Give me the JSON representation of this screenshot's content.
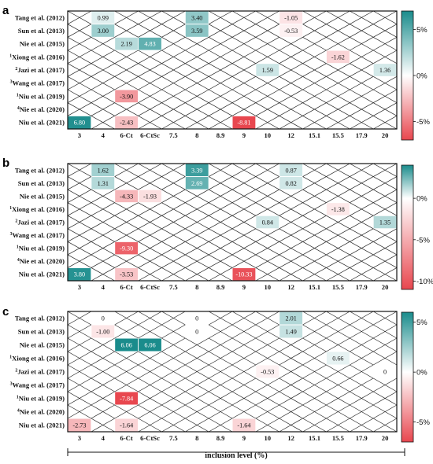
{
  "chart_data": [
    {
      "panel": "a",
      "type": "heatmap",
      "rows": [
        "Tang et al. (2012)",
        "Sun et al. (2013)",
        "Nie et al. (2015)",
        "Xiong et al. (2016)",
        "Jazi et al. (2017)",
        "Wang et al. (2017)",
        "Niu et al. (2019)",
        "Nie et al. (2020)",
        "Niu et al. (2021)"
      ],
      "row_superscripts": [
        "",
        "",
        "",
        "1",
        "2",
        "3",
        "1",
        "4",
        ""
      ],
      "columns": [
        "3",
        "4",
        "6-Ct",
        "6-CtSc",
        "7.5",
        "8",
        "8.9",
        "9",
        "10",
        "12",
        "15.1",
        "15.5",
        "17.9",
        "20"
      ],
      "cells": [
        {
          "row": 0,
          "col": 1,
          "value": 0.99
        },
        {
          "row": 0,
          "col": 5,
          "value": 3.4
        },
        {
          "row": 0,
          "col": 9,
          "value": -1.05
        },
        {
          "row": 1,
          "col": 1,
          "value": 3.0
        },
        {
          "row": 1,
          "col": 5,
          "value": 3.59
        },
        {
          "row": 1,
          "col": 9,
          "value": -0.53
        },
        {
          "row": 2,
          "col": 2,
          "value": 2.19
        },
        {
          "row": 2,
          "col": 3,
          "value": 4.83
        },
        {
          "row": 3,
          "col": 11,
          "value": -1.62
        },
        {
          "row": 4,
          "col": 8,
          "value": 1.59
        },
        {
          "row": 4,
          "col": 13,
          "value": 1.36
        },
        {
          "row": 6,
          "col": 2,
          "value": -3.9
        },
        {
          "row": 8,
          "col": 0,
          "value": 6.8
        },
        {
          "row": 8,
          "col": 2,
          "value": -2.43
        },
        {
          "row": 8,
          "col": 7,
          "value": -8.81
        }
      ],
      "colorbar": {
        "min": -7,
        "max": 7,
        "ticks": [
          5,
          0,
          -5
        ],
        "tick_labels": [
          "5%",
          "0%",
          "-5%"
        ]
      }
    },
    {
      "panel": "b",
      "type": "heatmap",
      "rows": [
        "Tang et al. (2012)",
        "Sun et al. (2013)",
        "Nie et al. (2015)",
        "Xiong et al. (2016)",
        "Jazi et al. (2017)",
        "Wang et al. (2017)",
        "Niu et al. (2019)",
        "Nie et al. (2020)",
        "Niu et al. (2021)"
      ],
      "row_superscripts": [
        "",
        "",
        "",
        "1",
        "2",
        "3",
        "1",
        "4",
        ""
      ],
      "columns": [
        "3",
        "4",
        "6-Ct",
        "6-CtSc",
        "7.5",
        "8",
        "8.9",
        "9",
        "10",
        "12",
        "15.1",
        "15.5",
        "17.9",
        "20"
      ],
      "cells": [
        {
          "row": 0,
          "col": 1,
          "value": 1.62
        },
        {
          "row": 0,
          "col": 5,
          "value": 3.39
        },
        {
          "row": 0,
          "col": 9,
          "value": 0.87
        },
        {
          "row": 1,
          "col": 1,
          "value": 1.31
        },
        {
          "row": 1,
          "col": 5,
          "value": 2.69
        },
        {
          "row": 1,
          "col": 9,
          "value": 0.82
        },
        {
          "row": 2,
          "col": 2,
          "value": -4.33
        },
        {
          "row": 2,
          "col": 3,
          "value": -1.93
        },
        {
          "row": 3,
          "col": 11,
          "value": -1.38
        },
        {
          "row": 4,
          "col": 8,
          "value": 0.84
        },
        {
          "row": 4,
          "col": 13,
          "value": 1.35
        },
        {
          "row": 6,
          "col": 2,
          "value": -9.3
        },
        {
          "row": 8,
          "col": 0,
          "value": 3.8
        },
        {
          "row": 8,
          "col": 2,
          "value": -3.53
        },
        {
          "row": 8,
          "col": 7,
          "value": -10.33
        }
      ],
      "colorbar": {
        "min": -11,
        "max": 4,
        "ticks": [
          0,
          -5,
          -10
        ],
        "tick_labels": [
          "0%",
          "-5%",
          "-10%"
        ]
      }
    },
    {
      "panel": "c",
      "type": "heatmap",
      "rows": [
        "Tang et al. (2012)",
        "Sun et al. (2013)",
        "Nie et al. (2015)",
        "Xiong et al. (2016)",
        "Jazi et al. (2017)",
        "Wang et al. (2017)",
        "Niu et al. (2019)",
        "Nie et al. (2020)",
        "Niu et al. (2021)"
      ],
      "row_superscripts": [
        "",
        "",
        "",
        "1",
        "2",
        "3",
        "1",
        "4",
        ""
      ],
      "columns": [
        "3",
        "4",
        "6-Ct",
        "6-CtSc",
        "7.5",
        "8",
        "8.9",
        "9",
        "10",
        "12",
        "15.1",
        "15.5",
        "17.9",
        "20"
      ],
      "cells": [
        {
          "row": 0,
          "col": 1,
          "value": 0,
          "label": "0"
        },
        {
          "row": 0,
          "col": 5,
          "value": 0,
          "label": "0"
        },
        {
          "row": 0,
          "col": 9,
          "value": 2.01
        },
        {
          "row": 1,
          "col": 1,
          "value": -1.0
        },
        {
          "row": 1,
          "col": 5,
          "value": 0,
          "label": "0"
        },
        {
          "row": 1,
          "col": 9,
          "value": 1.49
        },
        {
          "row": 2,
          "col": 2,
          "value": 6.06
        },
        {
          "row": 2,
          "col": 3,
          "value": 6.06
        },
        {
          "row": 3,
          "col": 11,
          "value": 0.66
        },
        {
          "row": 4,
          "col": 8,
          "value": -0.53
        },
        {
          "row": 4,
          "col": 13,
          "value": 0,
          "label": "0"
        },
        {
          "row": 6,
          "col": 2,
          "value": -7.84
        },
        {
          "row": 8,
          "col": 0,
          "value": -2.73
        },
        {
          "row": 8,
          "col": 2,
          "value": -1.64
        },
        {
          "row": 8,
          "col": 7,
          "value": -1.64
        }
      ],
      "colorbar": {
        "min": -7,
        "max": 6,
        "ticks": [
          5,
          0,
          -5
        ],
        "tick_labels": [
          "5%",
          "0%",
          "-5%"
        ]
      }
    }
  ],
  "xlabel": "inclusion level (%)",
  "colors": {
    "positive": "#1a8c8c",
    "negative": "#e8474f",
    "neutral": "#ffffff"
  }
}
